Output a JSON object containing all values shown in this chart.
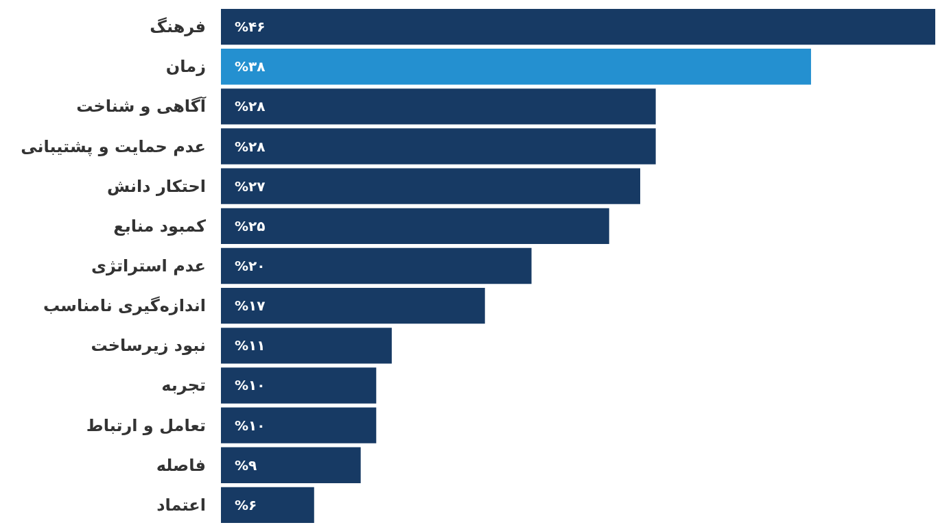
{
  "chart_data": {
    "type": "bar",
    "orientation": "horizontal",
    "categories": [
      "فرهنگ",
      "زمان",
      "آگاهی و شناخت",
      "عدم حمایت و پشتیبانی",
      "احتکار دانش",
      "کمبود منابع",
      "عدم استراتژی",
      "اندازه‌گیری نامناسب",
      "نبود زیرساخت",
      "تجربه",
      "تعامل و ارتباط",
      "فاصله",
      "اعتماد"
    ],
    "values": [
      46,
      38,
      28,
      28,
      27,
      25,
      20,
      17,
      11,
      10,
      10,
      9,
      6
    ],
    "colors": [
      "#173a64",
      "#2490d0",
      "#173a64",
      "#173a64",
      "#173a64",
      "#173a64",
      "#173a64",
      "#173a64",
      "#173a64",
      "#173a64",
      "#173a64",
      "#173a64",
      "#173a64"
    ],
    "value_labels": [
      "%۴۶",
      "%۳۸",
      "%۲۸",
      "%۲۸",
      "%۲۷",
      "%۲۵",
      "%۲۰",
      "%۱۷",
      "%۱۱",
      "%۱۰",
      "%۱۰",
      "%۹",
      "%۶"
    ]
  }
}
